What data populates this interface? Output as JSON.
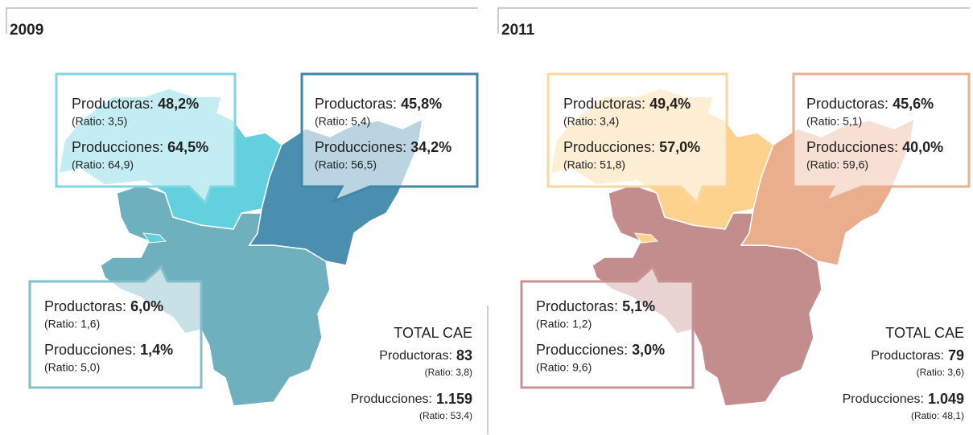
{
  "panels": [
    {
      "year": "2009",
      "callouts": [
        {
          "productoras_label": "Productoras:",
          "productoras": "48,2%",
          "productoras_ratio": "(Ratio: 3,5)",
          "producciones_label": "Producciones:",
          "producciones": "64,5%",
          "producciones_ratio": "(Ratio: 64,9)"
        },
        {
          "productoras_label": "Productoras:",
          "productoras": "45,8%",
          "productoras_ratio": "(Ratio: 5,4)",
          "producciones_label": "Producciones:",
          "producciones": "34,2%",
          "producciones_ratio": "(Ratio: 56,5)"
        },
        {
          "productoras_label": "Productoras:",
          "productoras": "6,0%",
          "productoras_ratio": "(Ratio: 1,6)",
          "producciones_label": "Producciones:",
          "producciones": "1,4%",
          "producciones_ratio": "(Ratio: 5,0)"
        }
      ],
      "total": {
        "title": "TOTAL CAE",
        "productoras_label": "Productoras:",
        "productoras": "83",
        "productoras_ratio": "(Ratio: 3,8)",
        "producciones_label": "Producciones:",
        "producciones": "1.159",
        "producciones_ratio": "(Ratio: 53,4)"
      }
    },
    {
      "year": "2011",
      "callouts": [
        {
          "productoras_label": "Productoras:",
          "productoras": "49,4%",
          "productoras_ratio": "(Ratio: 3,4)",
          "producciones_label": "Producciones:",
          "producciones": "57,0%",
          "producciones_ratio": "(Ratio: 51,8)"
        },
        {
          "productoras_label": "Productoras:",
          "productoras": "45,6%",
          "productoras_ratio": "(Ratio: 5,1)",
          "producciones_label": "Producciones:",
          "producciones": "40,0%",
          "producciones_ratio": "(Ratio: 59,6)"
        },
        {
          "productoras_label": "Productoras:",
          "productoras": "5,1%",
          "productoras_ratio": "(Ratio: 1,2)",
          "producciones_label": "Producciones:",
          "producciones": "3,0%",
          "producciones_ratio": "(Ratio: 9,6)"
        }
      ],
      "total": {
        "title": "TOTAL CAE",
        "productoras_label": "Productoras:",
        "productoras": "79",
        "productoras_ratio": "(Ratio: 3,6)",
        "producciones_label": "Producciones:",
        "producciones": "1.049",
        "producciones_ratio": "(Ratio: 48,1)"
      }
    }
  ]
}
